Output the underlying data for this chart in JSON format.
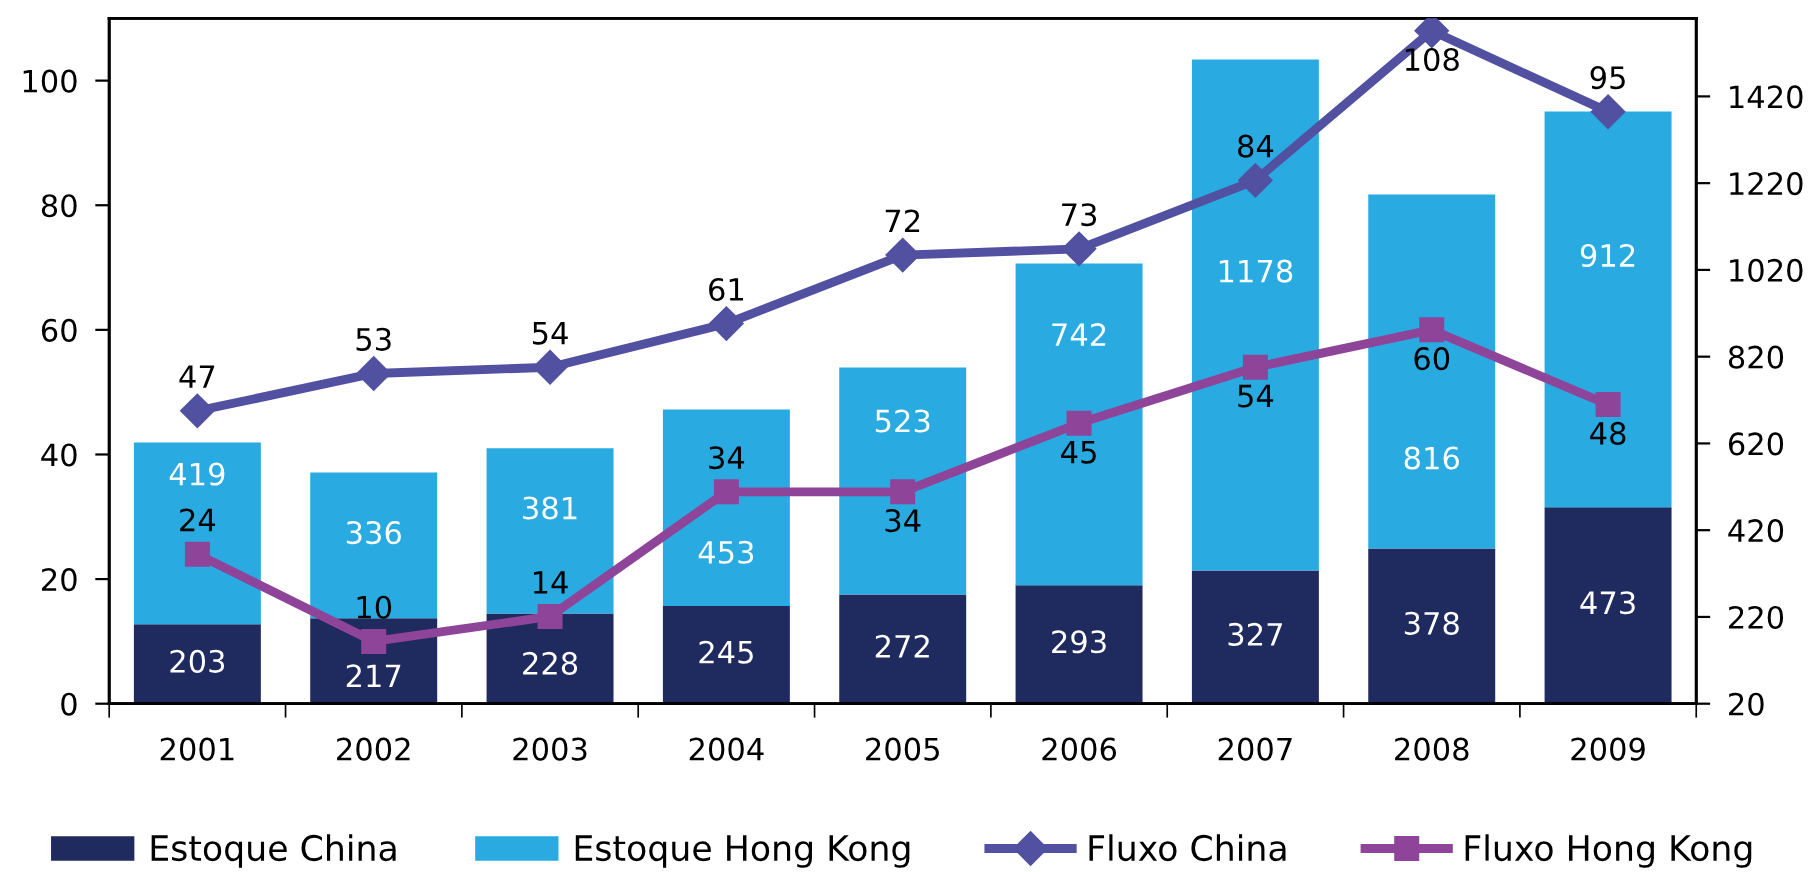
{
  "chart_data": {
    "type": "bar",
    "stacked": true,
    "categories": [
      "2001",
      "2002",
      "2003",
      "2004",
      "2005",
      "2006",
      "2007",
      "2008",
      "2009"
    ],
    "series": [
      {
        "name": "Estoque China",
        "color": "#1f2a5f",
        "axis": "y2",
        "values": [
          203,
          217,
          228,
          245,
          272,
          293,
          327,
          378,
          473
        ]
      },
      {
        "name": "Estoque Hong Kong",
        "color": "#29abe2",
        "axis": "y2",
        "values": [
          419,
          336,
          381,
          453,
          523,
          742,
          1178,
          816,
          912
        ]
      },
      {
        "name": "Fluxo China",
        "type": "line",
        "color": "#5250a1",
        "marker": "diamond",
        "values": [
          47,
          53,
          54,
          61,
          72,
          73,
          84,
          108,
          95
        ]
      },
      {
        "name": "Fluxo Hong Kong",
        "type": "line",
        "color": "#8e4499",
        "marker": "square",
        "values": [
          24,
          10,
          14,
          34,
          34,
          45,
          54,
          60,
          48
        ]
      }
    ],
    "ylim": [
      0,
      110
    ],
    "yticks": [
      0,
      20,
      40,
      60,
      80,
      100
    ],
    "y2lim": [
      20,
      1600
    ],
    "y2ticks": [
      20,
      220,
      420,
      620,
      820,
      1020,
      1220,
      1420
    ],
    "data_labels": true,
    "legend": "bottom",
    "grid": false
  }
}
